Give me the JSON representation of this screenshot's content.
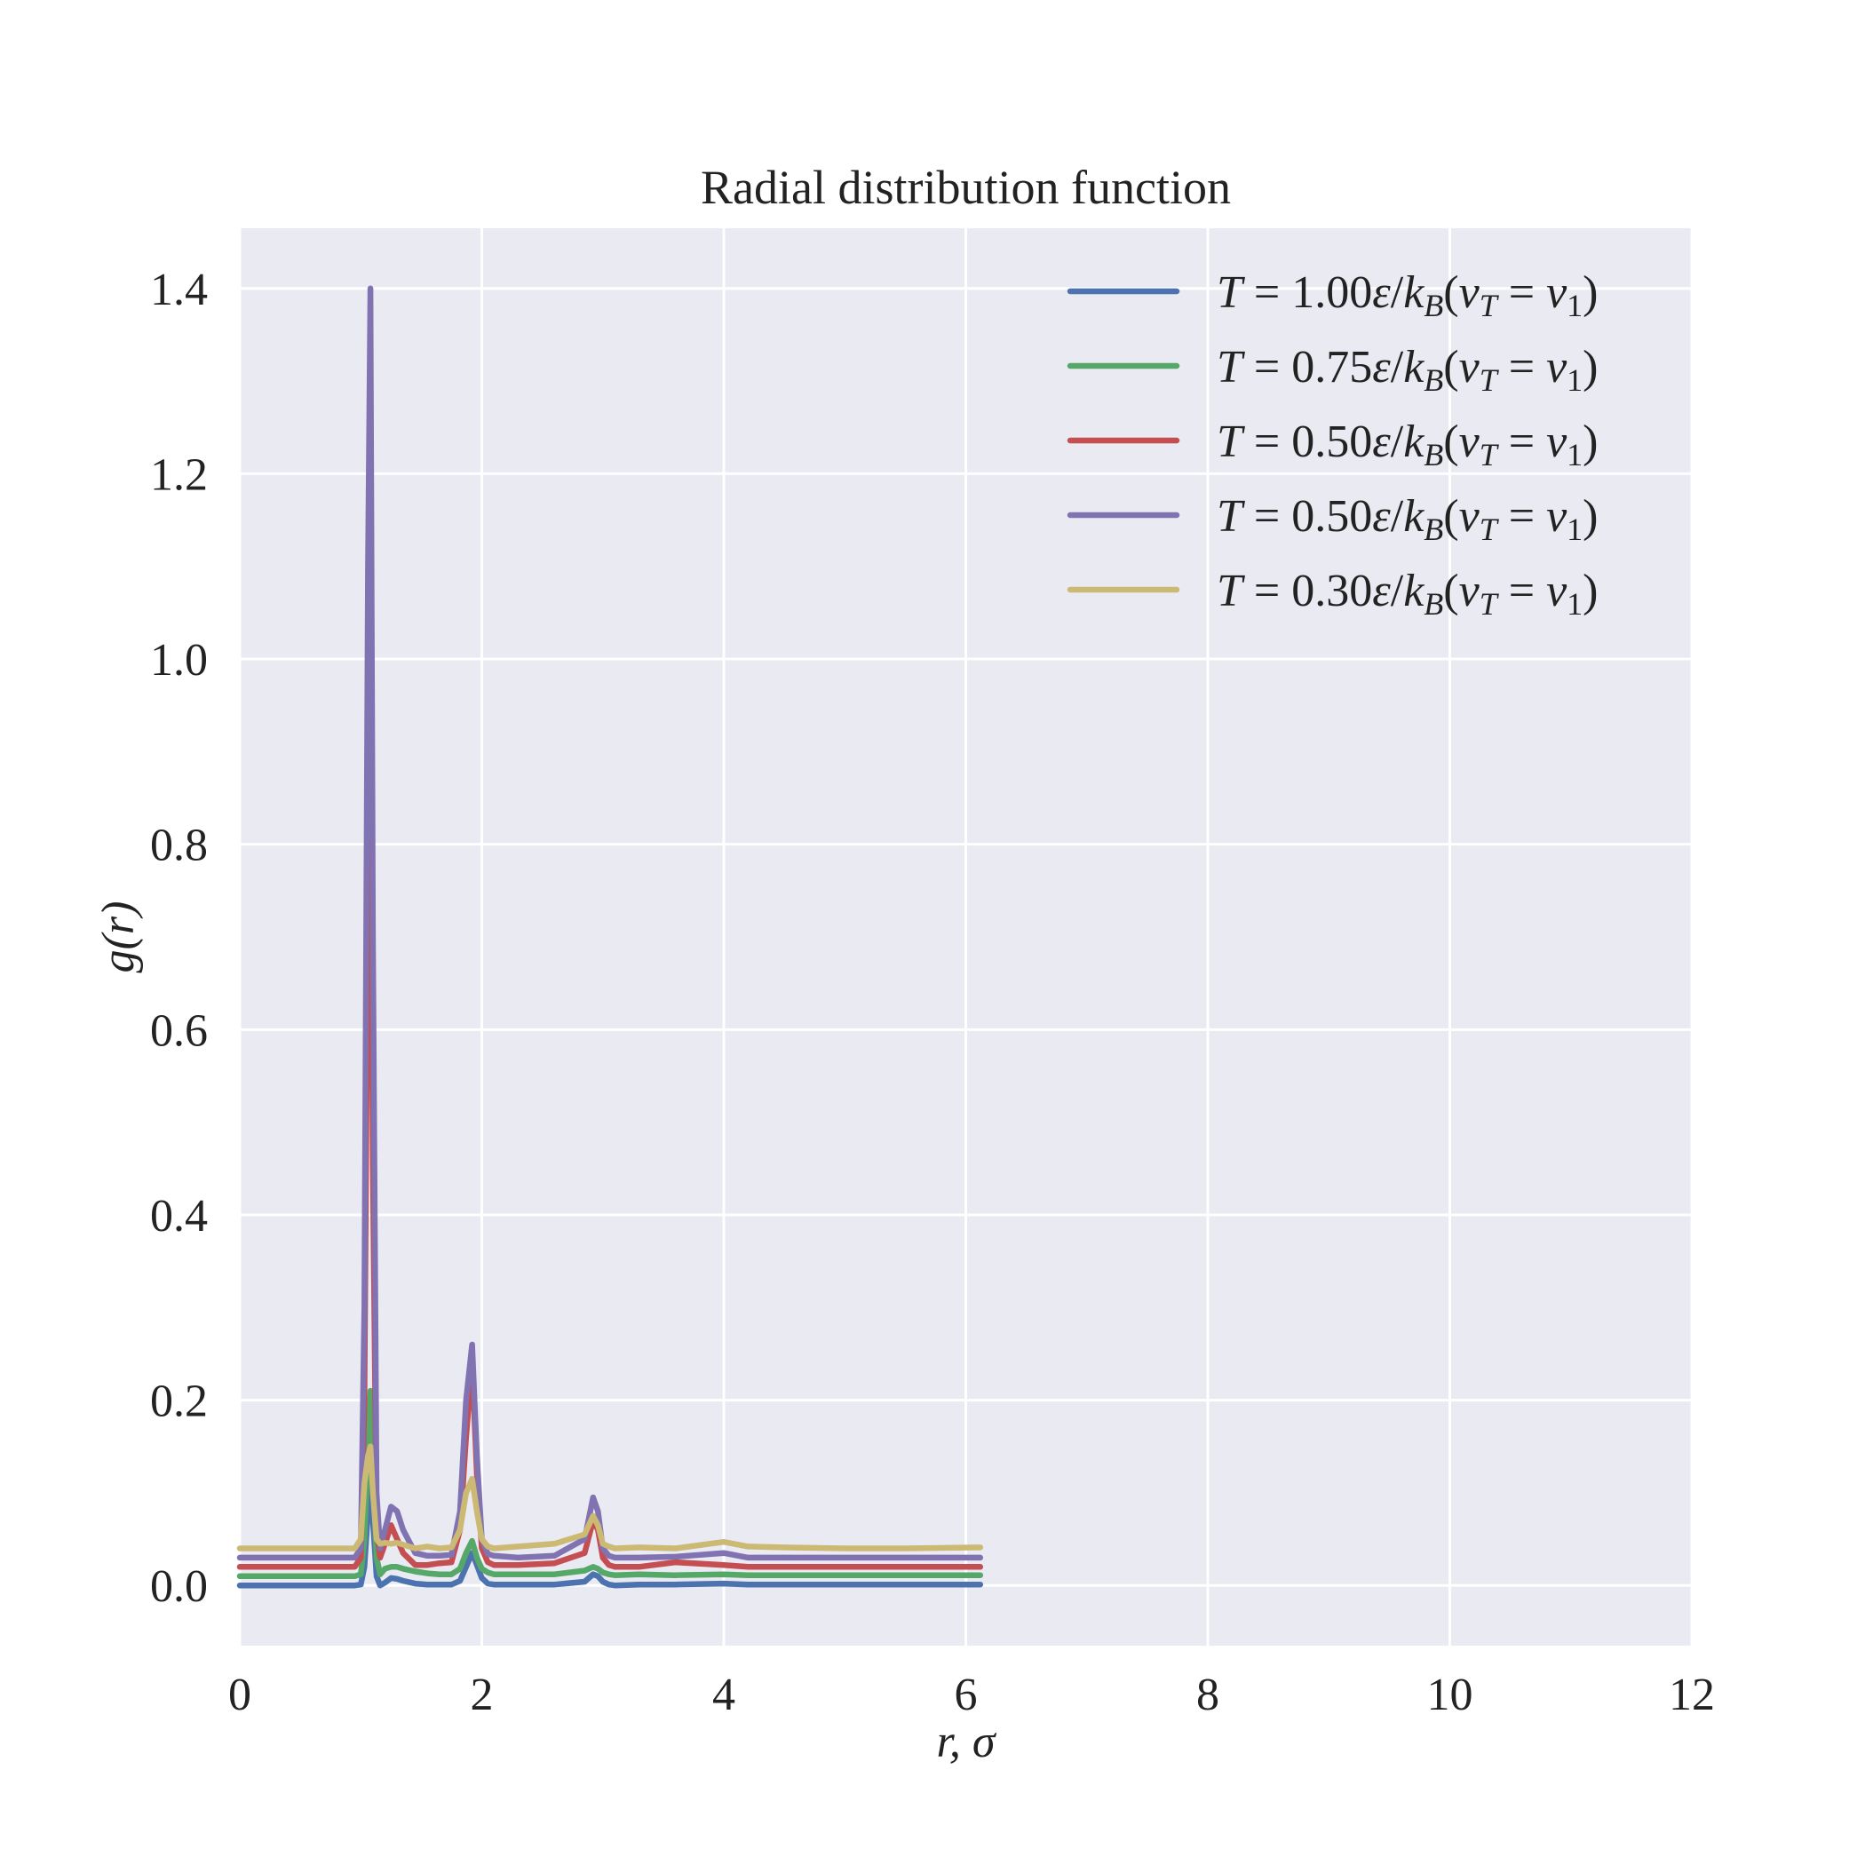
{
  "chart_data": {
    "type": "line",
    "title": "Radial distribution function",
    "xlabel": "r, σ",
    "ylabel": "g(r)",
    "xlim": [
      0,
      12
    ],
    "ylim": [
      -0.065,
      1.465
    ],
    "xticks": [
      0,
      2,
      4,
      6,
      8,
      10,
      12
    ],
    "xtick_labels": [
      "0",
      "2",
      "4",
      "6",
      "8",
      "10",
      "12"
    ],
    "yticks": [
      0.0,
      0.2,
      0.4,
      0.6,
      0.8,
      1.0,
      1.2,
      1.4
    ],
    "ytick_labels": [
      "0.0",
      "0.2",
      "0.4",
      "0.6",
      "0.8",
      "1.0",
      "1.2",
      "1.4"
    ],
    "grid": true,
    "legend_position": "top-right",
    "background": "#EAEAF2",
    "series": [
      {
        "name": "T=1.00ε/kB(vT=v1)",
        "legend": {
          "T": "T",
          "value": "1.00",
          "eps": "ε",
          "k": "k",
          "ksub": "B",
          "v": "v",
          "vsub": "T",
          "v1": "v",
          "v1sub": "1"
        },
        "color": "#4C72B0",
        "x": [
          0,
          0.95,
          1.0,
          1.03,
          1.06,
          1.08,
          1.1,
          1.13,
          1.16,
          1.2,
          1.25,
          1.3,
          1.35,
          1.45,
          1.55,
          1.65,
          1.75,
          1.82,
          1.87,
          1.92,
          1.96,
          2.0,
          2.05,
          2.1,
          2.3,
          2.6,
          2.85,
          2.92,
          2.96,
          3.0,
          3.05,
          3.1,
          3.3,
          3.6,
          4.0,
          4.2,
          4.5,
          5.0,
          5.5,
          6.12
        ],
        "y": [
          0,
          0,
          0.001,
          0.02,
          0.08,
          0.12,
          0.07,
          0.01,
          0.0,
          0.003,
          0.008,
          0.007,
          0.005,
          0.002,
          0.001,
          0.001,
          0.001,
          0.005,
          0.02,
          0.035,
          0.022,
          0.008,
          0.002,
          0.001,
          0.001,
          0.001,
          0.004,
          0.012,
          0.01,
          0.004,
          0.001,
          0.0,
          0.001,
          0.001,
          0.002,
          0.001,
          0.001,
          0.001,
          0.001,
          0.001
        ]
      },
      {
        "name": "T=0.75ε/kB(vT=v1)",
        "legend": {
          "T": "T",
          "value": "0.75",
          "eps": "ε",
          "k": "k",
          "ksub": "B",
          "v": "v",
          "vsub": "T",
          "v1": "v",
          "v1sub": "1"
        },
        "color": "#55A868",
        "x": [
          0,
          0.95,
          1.0,
          1.03,
          1.06,
          1.08,
          1.1,
          1.13,
          1.16,
          1.2,
          1.25,
          1.3,
          1.35,
          1.45,
          1.55,
          1.65,
          1.75,
          1.82,
          1.87,
          1.92,
          1.96,
          2.0,
          2.05,
          2.1,
          2.3,
          2.6,
          2.85,
          2.92,
          2.96,
          3.0,
          3.05,
          3.1,
          3.3,
          3.6,
          4.0,
          4.2,
          4.5,
          5.0,
          5.5,
          6.12
        ],
        "y": [
          0.01,
          0.01,
          0.012,
          0.05,
          0.15,
          0.21,
          0.12,
          0.03,
          0.012,
          0.018,
          0.02,
          0.02,
          0.018,
          0.015,
          0.013,
          0.012,
          0.012,
          0.018,
          0.035,
          0.048,
          0.03,
          0.018,
          0.014,
          0.012,
          0.012,
          0.012,
          0.016,
          0.02,
          0.018,
          0.014,
          0.012,
          0.011,
          0.012,
          0.011,
          0.012,
          0.011,
          0.011,
          0.011,
          0.011,
          0.011
        ]
      },
      {
        "name": "T=0.50ε/kB(vT=v1)",
        "legend": {
          "T": "T",
          "value": "0.50",
          "eps": "ε",
          "k": "k",
          "ksub": "B",
          "v": "v",
          "vsub": "T",
          "v1": "v",
          "v1sub": "1"
        },
        "color": "#C44E52",
        "x": [
          0,
          0.95,
          1.0,
          1.03,
          1.06,
          1.08,
          1.1,
          1.13,
          1.16,
          1.2,
          1.25,
          1.3,
          1.35,
          1.45,
          1.55,
          1.65,
          1.75,
          1.82,
          1.87,
          1.92,
          1.96,
          2.0,
          2.05,
          2.1,
          2.3,
          2.6,
          2.85,
          2.92,
          2.96,
          3.0,
          3.05,
          3.1,
          3.3,
          3.6,
          4.0,
          4.2,
          4.5,
          5.0,
          5.5,
          6.12
        ],
        "y": [
          0.02,
          0.02,
          0.03,
          0.2,
          0.75,
          0.9,
          0.45,
          0.06,
          0.03,
          0.045,
          0.065,
          0.05,
          0.035,
          0.022,
          0.022,
          0.024,
          0.025,
          0.06,
          0.16,
          0.24,
          0.12,
          0.04,
          0.025,
          0.022,
          0.022,
          0.024,
          0.035,
          0.07,
          0.06,
          0.03,
          0.022,
          0.02,
          0.02,
          0.025,
          0.022,
          0.02,
          0.02,
          0.02,
          0.02,
          0.02
        ]
      },
      {
        "name": "T=0.50ε/kB(vT=v1)",
        "legend": {
          "T": "T",
          "value": "0.50",
          "eps": "ε",
          "k": "k",
          "ksub": "B",
          "v": "v",
          "vsub": "T",
          "v1": "v",
          "v1sub": "1"
        },
        "color": "#8172B2",
        "x": [
          0,
          0.95,
          1.0,
          1.03,
          1.06,
          1.08,
          1.1,
          1.13,
          1.16,
          1.2,
          1.25,
          1.3,
          1.35,
          1.45,
          1.55,
          1.65,
          1.75,
          1.82,
          1.87,
          1.92,
          1.96,
          2.0,
          2.05,
          2.1,
          2.3,
          2.6,
          2.85,
          2.92,
          2.96,
          3.0,
          3.05,
          3.1,
          3.3,
          3.6,
          4.0,
          4.2,
          4.5,
          5.0,
          5.5,
          6.12
        ],
        "y": [
          0.03,
          0.03,
          0.04,
          0.3,
          1.1,
          1.4,
          0.7,
          0.1,
          0.04,
          0.06,
          0.085,
          0.08,
          0.06,
          0.035,
          0.032,
          0.032,
          0.033,
          0.08,
          0.2,
          0.26,
          0.14,
          0.05,
          0.034,
          0.032,
          0.03,
          0.032,
          0.05,
          0.095,
          0.08,
          0.04,
          0.032,
          0.03,
          0.03,
          0.031,
          0.035,
          0.03,
          0.03,
          0.03,
          0.03,
          0.03
        ]
      },
      {
        "name": "T=0.30ε/kB(vT=v1)",
        "legend": {
          "T": "T",
          "value": "0.30",
          "eps": "ε",
          "k": "k",
          "ksub": "B",
          "v": "v",
          "vsub": "T",
          "v1": "v",
          "v1sub": "1"
        },
        "color": "#CCB974",
        "x": [
          0,
          0.95,
          1.0,
          1.03,
          1.06,
          1.08,
          1.1,
          1.13,
          1.16,
          1.2,
          1.25,
          1.3,
          1.35,
          1.45,
          1.55,
          1.65,
          1.75,
          1.82,
          1.87,
          1.92,
          1.96,
          2.0,
          2.05,
          2.1,
          2.3,
          2.6,
          2.85,
          2.92,
          2.96,
          3.0,
          3.05,
          3.1,
          3.3,
          3.6,
          4.0,
          4.2,
          4.5,
          5.0,
          5.5,
          6.12
        ],
        "y": [
          0.04,
          0.04,
          0.05,
          0.11,
          0.14,
          0.15,
          0.1,
          0.05,
          0.045,
          0.046,
          0.045,
          0.046,
          0.044,
          0.04,
          0.042,
          0.04,
          0.041,
          0.06,
          0.1,
          0.115,
          0.08,
          0.05,
          0.042,
          0.04,
          0.042,
          0.045,
          0.055,
          0.075,
          0.065,
          0.045,
          0.042,
          0.04,
          0.041,
          0.04,
          0.047,
          0.042,
          0.041,
          0.04,
          0.04,
          0.041
        ]
      }
    ]
  }
}
